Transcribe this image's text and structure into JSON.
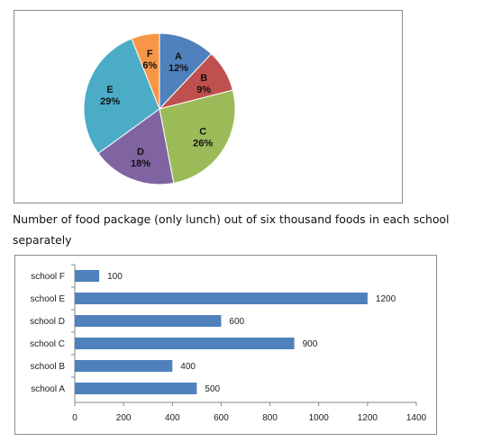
{
  "pie_chart": {
    "type": "pie",
    "slices": [
      {
        "label": "A",
        "value": 12,
        "value_label": "12%",
        "color": "#4f81bd"
      },
      {
        "label": "B",
        "value": 9,
        "value_label": "9%",
        "color": "#c0504d"
      },
      {
        "label": "C",
        "value": 26,
        "value_label": "26%",
        "color": "#9bbb59"
      },
      {
        "label": "D",
        "value": 18,
        "value_label": "18%",
        "color": "#8064a2"
      },
      {
        "label": "E",
        "value": 29,
        "value_label": "29%",
        "color": "#4bacc6"
      },
      {
        "label": "F",
        "value": 6,
        "value_label": "6%",
        "color": "#f79646"
      }
    ]
  },
  "caption": "Number of food package (only lunch) out of six thousand foods in each school separately",
  "chart_data": {
    "type": "bar",
    "orientation": "horizontal",
    "categories": [
      "school F",
      "school E",
      "school D",
      "school C",
      "school B",
      "school A"
    ],
    "values": [
      100,
      1200,
      600,
      900,
      400,
      500
    ],
    "xlim": [
      0,
      1400
    ],
    "xticks": [
      0,
      200,
      400,
      600,
      800,
      1000,
      1200,
      1400
    ],
    "bar_color": "#4f81bd",
    "grid": false,
    "title": "",
    "xlabel": "",
    "ylabel": ""
  }
}
